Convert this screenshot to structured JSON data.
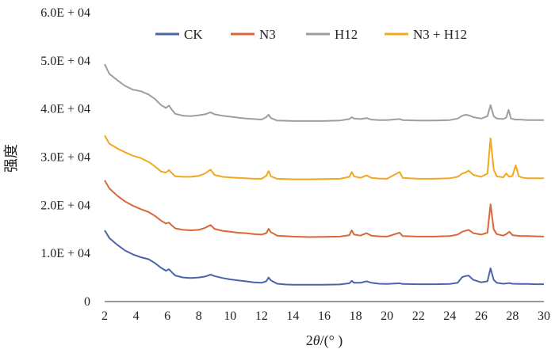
{
  "chart_data": {
    "type": "line",
    "xlabel_prefix": "2",
    "xlabel_var": "θ",
    "xlabel_unit": "/(° )",
    "ylabel": "强度",
    "xlim": [
      2,
      30
    ],
    "ylim": [
      0,
      60000
    ],
    "x_ticks": [
      "2",
      "4",
      "6",
      "8",
      "10",
      "12",
      "14",
      "16",
      "18",
      "20",
      "22",
      "24",
      "26",
      "28",
      "30"
    ],
    "y_ticks": [
      {
        "value": 0,
        "label": "0"
      },
      {
        "value": 10000,
        "label": "1.0E + 04"
      },
      {
        "value": 20000,
        "label": "2.0E + 04"
      },
      {
        "value": 30000,
        "label": "3.0E + 04"
      },
      {
        "value": 40000,
        "label": "4.0E + 04"
      },
      {
        "value": 50000,
        "label": "5.0E + 04"
      },
      {
        "value": 60000,
        "label": "6.0E + 04"
      }
    ],
    "grid": "none",
    "legend_position": "top",
    "series": [
      {
        "name": "CK",
        "color": "#4a64ab",
        "points": [
          [
            2.0,
            14800
          ],
          [
            2.3,
            13200
          ],
          [
            2.8,
            11800
          ],
          [
            3.3,
            10600
          ],
          [
            3.8,
            9800
          ],
          [
            4.3,
            9200
          ],
          [
            4.8,
            8800
          ],
          [
            5.2,
            8000
          ],
          [
            5.6,
            7000
          ],
          [
            5.9,
            6400
          ],
          [
            6.1,
            6700
          ],
          [
            6.25,
            6200
          ],
          [
            6.5,
            5400
          ],
          [
            7.0,
            5000
          ],
          [
            7.5,
            4900
          ],
          [
            8.0,
            5000
          ],
          [
            8.4,
            5200
          ],
          [
            8.75,
            5600
          ],
          [
            9.0,
            5300
          ],
          [
            9.5,
            4900
          ],
          [
            10.0,
            4600
          ],
          [
            10.5,
            4400
          ],
          [
            11.0,
            4200
          ],
          [
            11.5,
            4000
          ],
          [
            12.0,
            3900
          ],
          [
            12.3,
            4200
          ],
          [
            12.45,
            5000
          ],
          [
            12.6,
            4400
          ],
          [
            13.0,
            3700
          ],
          [
            13.5,
            3550
          ],
          [
            14.0,
            3500
          ],
          [
            15.0,
            3500
          ],
          [
            16.0,
            3500
          ],
          [
            17.0,
            3550
          ],
          [
            17.6,
            3800
          ],
          [
            17.75,
            4300
          ],
          [
            17.9,
            3900
          ],
          [
            18.3,
            3900
          ],
          [
            18.7,
            4200
          ],
          [
            19.0,
            3900
          ],
          [
            19.5,
            3700
          ],
          [
            20.0,
            3650
          ],
          [
            20.8,
            3800
          ],
          [
            21.0,
            3650
          ],
          [
            22.0,
            3600
          ],
          [
            23.0,
            3600
          ],
          [
            24.0,
            3650
          ],
          [
            24.5,
            3900
          ],
          [
            24.8,
            5100
          ],
          [
            25.0,
            5300
          ],
          [
            25.2,
            5400
          ],
          [
            25.5,
            4500
          ],
          [
            26.0,
            4000
          ],
          [
            26.4,
            4200
          ],
          [
            26.6,
            6900
          ],
          [
            26.8,
            4500
          ],
          [
            27.0,
            3900
          ],
          [
            27.4,
            3700
          ],
          [
            27.8,
            3850
          ],
          [
            28.0,
            3700
          ],
          [
            28.5,
            3650
          ],
          [
            29.0,
            3650
          ],
          [
            29.5,
            3600
          ],
          [
            30.0,
            3600
          ]
        ]
      },
      {
        "name": "N3",
        "color": "#d9673a",
        "points": [
          [
            2.0,
            25200
          ],
          [
            2.3,
            23500
          ],
          [
            2.8,
            22000
          ],
          [
            3.3,
            20800
          ],
          [
            3.8,
            19900
          ],
          [
            4.3,
            19200
          ],
          [
            4.8,
            18600
          ],
          [
            5.2,
            17800
          ],
          [
            5.6,
            16800
          ],
          [
            5.9,
            16200
          ],
          [
            6.1,
            16400
          ],
          [
            6.25,
            15900
          ],
          [
            6.5,
            15200
          ],
          [
            7.0,
            14900
          ],
          [
            7.5,
            14800
          ],
          [
            8.0,
            14900
          ],
          [
            8.4,
            15300
          ],
          [
            8.75,
            15900
          ],
          [
            9.0,
            15100
          ],
          [
            9.5,
            14700
          ],
          [
            10.0,
            14500
          ],
          [
            10.5,
            14300
          ],
          [
            11.0,
            14200
          ],
          [
            11.5,
            14000
          ],
          [
            12.0,
            13900
          ],
          [
            12.3,
            14200
          ],
          [
            12.45,
            15100
          ],
          [
            12.6,
            14400
          ],
          [
            13.0,
            13700
          ],
          [
            14.0,
            13500
          ],
          [
            15.0,
            13400
          ],
          [
            16.0,
            13450
          ],
          [
            17.0,
            13500
          ],
          [
            17.6,
            13800
          ],
          [
            17.75,
            14800
          ],
          [
            17.9,
            13900
          ],
          [
            18.3,
            13700
          ],
          [
            18.7,
            14200
          ],
          [
            19.0,
            13700
          ],
          [
            19.5,
            13550
          ],
          [
            20.0,
            13500
          ],
          [
            20.8,
            14300
          ],
          [
            21.0,
            13600
          ],
          [
            22.0,
            13500
          ],
          [
            23.0,
            13500
          ],
          [
            24.0,
            13600
          ],
          [
            24.5,
            13900
          ],
          [
            24.8,
            14500
          ],
          [
            25.0,
            14700
          ],
          [
            25.2,
            14900
          ],
          [
            25.5,
            14200
          ],
          [
            26.0,
            13900
          ],
          [
            26.4,
            14300
          ],
          [
            26.6,
            20200
          ],
          [
            26.8,
            15000
          ],
          [
            27.0,
            14000
          ],
          [
            27.4,
            13700
          ],
          [
            27.6,
            14000
          ],
          [
            27.8,
            14500
          ],
          [
            28.0,
            13800
          ],
          [
            28.5,
            13600
          ],
          [
            29.0,
            13600
          ],
          [
            29.5,
            13550
          ],
          [
            30.0,
            13500
          ]
        ]
      },
      {
        "name": "H12",
        "color": "#9e9e9e",
        "points": [
          [
            2.0,
            49300
          ],
          [
            2.3,
            47300
          ],
          [
            2.8,
            46000
          ],
          [
            3.3,
            44800
          ],
          [
            3.8,
            44000
          ],
          [
            4.3,
            43700
          ],
          [
            4.8,
            43000
          ],
          [
            5.2,
            42100
          ],
          [
            5.6,
            40800
          ],
          [
            5.9,
            40200
          ],
          [
            6.1,
            40700
          ],
          [
            6.25,
            40000
          ],
          [
            6.5,
            39000
          ],
          [
            7.0,
            38600
          ],
          [
            7.5,
            38500
          ],
          [
            8.0,
            38700
          ],
          [
            8.4,
            38900
          ],
          [
            8.75,
            39300
          ],
          [
            9.0,
            38900
          ],
          [
            9.5,
            38600
          ],
          [
            10.0,
            38400
          ],
          [
            10.5,
            38200
          ],
          [
            11.0,
            38000
          ],
          [
            11.5,
            37900
          ],
          [
            12.0,
            37800
          ],
          [
            12.3,
            38300
          ],
          [
            12.45,
            38800
          ],
          [
            12.6,
            38100
          ],
          [
            13.0,
            37600
          ],
          [
            14.0,
            37500
          ],
          [
            15.0,
            37500
          ],
          [
            16.0,
            37500
          ],
          [
            17.0,
            37600
          ],
          [
            17.6,
            37900
          ],
          [
            17.75,
            38300
          ],
          [
            17.9,
            38000
          ],
          [
            18.3,
            37900
          ],
          [
            18.7,
            38100
          ],
          [
            19.0,
            37800
          ],
          [
            19.5,
            37700
          ],
          [
            20.0,
            37700
          ],
          [
            20.8,
            37900
          ],
          [
            21.0,
            37700
          ],
          [
            22.0,
            37600
          ],
          [
            23.0,
            37600
          ],
          [
            24.0,
            37700
          ],
          [
            24.5,
            38000
          ],
          [
            24.8,
            38600
          ],
          [
            25.0,
            38800
          ],
          [
            25.2,
            38700
          ],
          [
            25.5,
            38300
          ],
          [
            26.0,
            38000
          ],
          [
            26.4,
            38500
          ],
          [
            26.6,
            40800
          ],
          [
            26.8,
            38500
          ],
          [
            27.0,
            38000
          ],
          [
            27.4,
            37900
          ],
          [
            27.6,
            38200
          ],
          [
            27.75,
            39800
          ],
          [
            27.9,
            38000
          ],
          [
            28.2,
            37800
          ],
          [
            28.5,
            37800
          ],
          [
            29.0,
            37700
          ],
          [
            29.5,
            37700
          ],
          [
            30.0,
            37700
          ]
        ]
      },
      {
        "name": "N3 + H12",
        "color": "#f2a81d",
        "points": [
          [
            2.0,
            34500
          ],
          [
            2.3,
            32800
          ],
          [
            2.8,
            31800
          ],
          [
            3.3,
            31000
          ],
          [
            3.8,
            30300
          ],
          [
            4.3,
            29800
          ],
          [
            4.8,
            29000
          ],
          [
            5.2,
            28100
          ],
          [
            5.6,
            27000
          ],
          [
            5.9,
            26800
          ],
          [
            6.1,
            27300
          ],
          [
            6.25,
            26800
          ],
          [
            6.5,
            26000
          ],
          [
            7.0,
            25900
          ],
          [
            7.5,
            25900
          ],
          [
            8.0,
            26100
          ],
          [
            8.4,
            26600
          ],
          [
            8.75,
            27400
          ],
          [
            9.0,
            26300
          ],
          [
            9.5,
            25900
          ],
          [
            10.0,
            25800
          ],
          [
            10.5,
            25700
          ],
          [
            11.0,
            25600
          ],
          [
            11.5,
            25500
          ],
          [
            12.0,
            25500
          ],
          [
            12.3,
            26100
          ],
          [
            12.45,
            27100
          ],
          [
            12.6,
            26000
          ],
          [
            13.0,
            25500
          ],
          [
            14.0,
            25400
          ],
          [
            15.0,
            25400
          ],
          [
            16.0,
            25450
          ],
          [
            17.0,
            25500
          ],
          [
            17.6,
            25900
          ],
          [
            17.75,
            26900
          ],
          [
            17.9,
            26000
          ],
          [
            18.3,
            25700
          ],
          [
            18.7,
            26200
          ],
          [
            19.0,
            25700
          ],
          [
            19.5,
            25550
          ],
          [
            20.0,
            25500
          ],
          [
            20.8,
            26900
          ],
          [
            21.0,
            25700
          ],
          [
            22.0,
            25500
          ],
          [
            23.0,
            25500
          ],
          [
            24.0,
            25600
          ],
          [
            24.5,
            25900
          ],
          [
            24.8,
            26600
          ],
          [
            25.0,
            26800
          ],
          [
            25.2,
            27200
          ],
          [
            25.5,
            26300
          ],
          [
            26.0,
            25900
          ],
          [
            26.4,
            26600
          ],
          [
            26.6,
            33900
          ],
          [
            26.8,
            27400
          ],
          [
            27.0,
            26000
          ],
          [
            27.4,
            25800
          ],
          [
            27.6,
            26600
          ],
          [
            27.8,
            25900
          ],
          [
            28.0,
            26100
          ],
          [
            28.2,
            28300
          ],
          [
            28.4,
            26000
          ],
          [
            28.7,
            25700
          ],
          [
            29.0,
            25600
          ],
          [
            29.5,
            25600
          ],
          [
            30.0,
            25600
          ]
        ]
      }
    ]
  }
}
